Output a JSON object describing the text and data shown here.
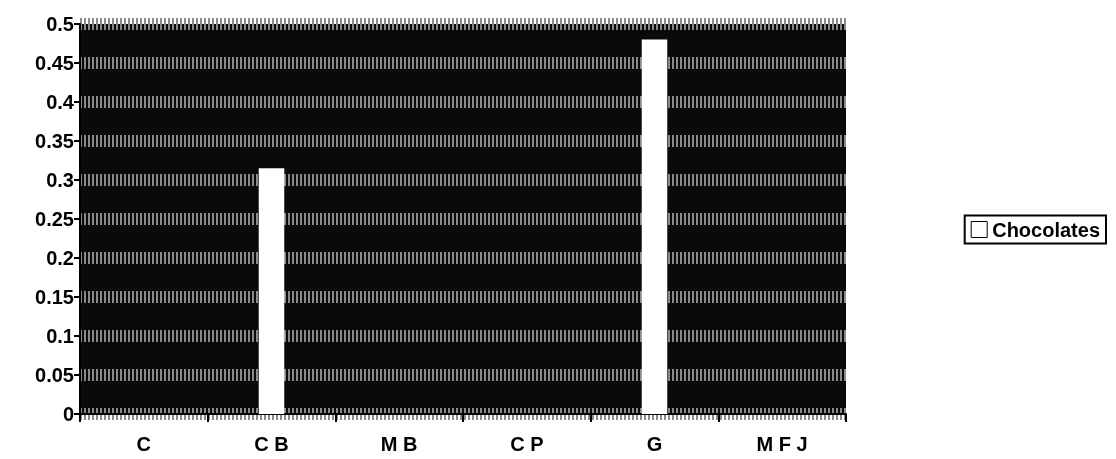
{
  "chart_data": {
    "type": "bar",
    "categories": [
      "C",
      "C B",
      "M B",
      "C P",
      "G",
      "M F J"
    ],
    "series": [
      {
        "name": "Chocolates",
        "color": "#ffffff",
        "values": [
          0,
          0.315,
          0,
          0,
          0.48,
          0
        ]
      }
    ],
    "ylim": [
      0,
      0.5
    ],
    "yticks": [
      0,
      0.05,
      0.1,
      0.15,
      0.2,
      0.25,
      0.3,
      0.35,
      0.4,
      0.45,
      0.5
    ],
    "grid": "y",
    "legend": "right"
  }
}
